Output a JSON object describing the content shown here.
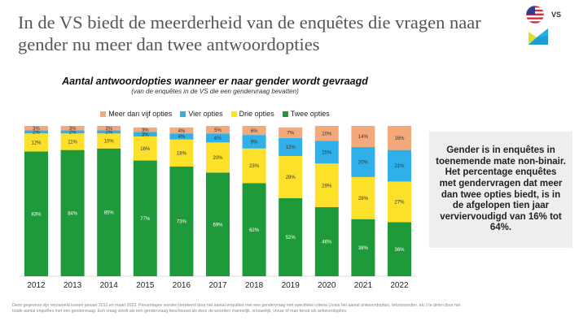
{
  "headline": "In de VS biedt de meerderheid van de enquêtes die vragen naar gender nu meer dan twee antwoordopties",
  "logo": {
    "label": "VS",
    "flag_icon": "us-flag-icon",
    "brand_icon": "brand-shape-icon"
  },
  "callout_text": "Gender is in enquêtes in toenemende mate non-binair. Het percentage enquêtes met gendervragen dat meer dan twee opties biedt, is in de afgelopen tien jaar verviervoudigd van 16% tot 64%.",
  "footnote": "Deze gegevens zijn verzameld tussen januari 2012 en maart 2023. Percentages worden berekend door het aantal enquêtes met een gendervraag met specifieke criteria (zoals het aantal antwoordopties, tekstwoorden, etc.) te delen door het totale aantal enquêtes met een gendervraag. Een vraag wordt als een gendervraag beschouwd als deze de woorden mannelijk, vrouwelijk, vrouw of man bevat als antwoordopties.",
  "chart_data": {
    "type": "bar",
    "stacked": true,
    "title": "Aantal antwoordopties wanneer er naar gender wordt gevraagd",
    "subtitle": "(van de enquêtes in de VS die een gendervraag bevatten)",
    "legend_position": "top",
    "categories": [
      "2012",
      "2013",
      "2014",
      "2015",
      "2016",
      "2017",
      "2018",
      "2019",
      "2020",
      "2021",
      "2022"
    ],
    "series": [
      {
        "name": "Twee opties",
        "color": "#1e9a3a",
        "values": [
          83,
          84,
          85,
          77,
          73,
          69,
          62,
          52,
          46,
          38,
          36
        ]
      },
      {
        "name": "Drie opties",
        "color": "#fde02a",
        "values": [
          12,
          11,
          10,
          16,
          18,
          20,
          23,
          28,
          29,
          28,
          27
        ]
      },
      {
        "name": "Vier opties",
        "color": "#2fb0e8",
        "values": [
          2,
          2,
          2,
          3,
          4,
          6,
          9,
          12,
          15,
          20,
          21
        ]
      },
      {
        "name": "Meer dan vijf opties",
        "color": "#f3a97c",
        "values": [
          3,
          3,
          3,
          3,
          4,
          5,
          6,
          7,
          10,
          14,
          16
        ]
      }
    ],
    "legend_order": [
      "Meer dan vijf opties",
      "Vier opties",
      "Drie opties",
      "Twee opties"
    ],
    "ylim": [
      0,
      100
    ],
    "grid": false
  }
}
